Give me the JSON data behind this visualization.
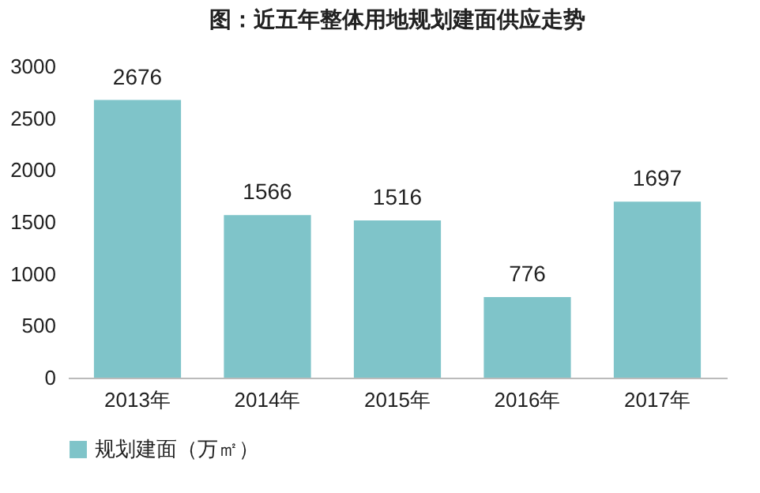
{
  "chart_data": {
    "type": "bar",
    "title": "图：近五年整体用地规划建面供应走势",
    "categories": [
      "2013年",
      "2014年",
      "2015年",
      "2016年",
      "2017年"
    ],
    "series": [
      {
        "name": "规划建面（万㎡）",
        "color": "#7fc4c9",
        "values": [
          2676,
          1566,
          1516,
          776,
          1697
        ]
      }
    ],
    "ylim": [
      0,
      3000
    ],
    "yticks": [
      0,
      500,
      1000,
      1500,
      2000,
      2500,
      3000
    ],
    "grid": false,
    "legend": "bottom",
    "data_labels": true
  }
}
